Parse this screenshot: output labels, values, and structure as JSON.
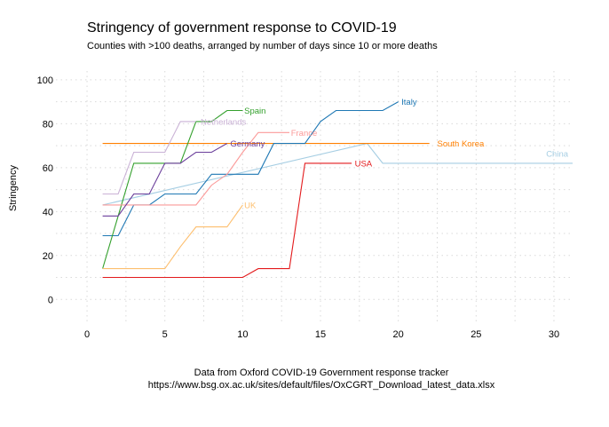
{
  "chart_data": {
    "type": "line",
    "title": "Stringency of government response to COVID-19",
    "subtitle": "Counties with >100 deaths, arranged by number of days since 10 or more deaths",
    "xlabel": "",
    "ylabel": "Stringency",
    "caption_lines": [
      "Data from Oxford COVID-19 Government response tracker",
      "https://www.bsg.ox.ac.uk/sites/default/files/OxCGRT_Download_latest_data.xlsx"
    ],
    "xlim": [
      -2,
      31.2
    ],
    "ylim": [
      -10,
      104
    ],
    "x_ticks": [
      0,
      5,
      10,
      15,
      20,
      25,
      30
    ],
    "y_ticks": [
      0,
      20,
      40,
      60,
      80,
      100
    ],
    "grid": true,
    "legend": "none (direct labels at line ends)",
    "series": [
      {
        "name": "China",
        "color": "#a6cee3",
        "label_at": [
          29.5,
          66.5
        ],
        "points": [
          [
            1,
            43
          ],
          [
            18,
            71
          ],
          [
            19,
            62
          ],
          [
            31.2,
            62
          ]
        ]
      },
      {
        "name": "South Korea",
        "color": "#ff7f00",
        "label_at": [
          22.5,
          71
        ],
        "points": [
          [
            1,
            71
          ],
          [
            22,
            71
          ]
        ]
      },
      {
        "name": "Italy",
        "color": "#1f78b4",
        "label_at": [
          20.2,
          90
        ],
        "points": [
          [
            1,
            29
          ],
          [
            2,
            29
          ],
          [
            3,
            43
          ],
          [
            4,
            43
          ],
          [
            5,
            48
          ],
          [
            6,
            48
          ],
          [
            7,
            48
          ],
          [
            8,
            57
          ],
          [
            9,
            57
          ],
          [
            10,
            57
          ],
          [
            11,
            57
          ],
          [
            12,
            71
          ],
          [
            13,
            71
          ],
          [
            14,
            71
          ],
          [
            15,
            81
          ],
          [
            16,
            86
          ],
          [
            17,
            86
          ],
          [
            18,
            86
          ],
          [
            19,
            86
          ],
          [
            20,
            90
          ]
        ]
      },
      {
        "name": "Spain",
        "color": "#33a02c",
        "label_at": [
          10.1,
          86
        ],
        "points": [
          [
            1,
            14
          ],
          [
            2,
            38
          ],
          [
            3,
            62
          ],
          [
            4,
            62
          ],
          [
            5,
            62
          ],
          [
            6,
            62
          ],
          [
            7,
            81
          ],
          [
            8,
            81
          ],
          [
            9,
            86
          ],
          [
            10,
            86
          ]
        ]
      },
      {
        "name": "Netherlands",
        "color": "#cab2d6",
        "label_at": [
          7.3,
          81
        ],
        "points": [
          [
            1,
            48
          ],
          [
            2,
            48
          ],
          [
            3,
            67
          ],
          [
            4,
            67
          ],
          [
            5,
            67
          ],
          [
            6,
            81
          ],
          [
            7,
            81
          ]
        ]
      },
      {
        "name": "France",
        "color": "#fb9a99",
        "label_at": [
          13.1,
          76
        ],
        "points": [
          [
            1,
            43
          ],
          [
            2,
            43
          ],
          [
            3,
            43
          ],
          [
            4,
            43
          ],
          [
            5,
            43
          ],
          [
            6,
            43
          ],
          [
            7,
            43
          ],
          [
            8,
            52
          ],
          [
            9,
            57
          ],
          [
            10,
            67
          ],
          [
            11,
            76
          ],
          [
            12,
            76
          ],
          [
            13,
            76
          ]
        ]
      },
      {
        "name": "Germany",
        "color": "#6a3d9a",
        "label_at": [
          9.2,
          71
        ],
        "points": [
          [
            1,
            38
          ],
          [
            2,
            38
          ],
          [
            3,
            48
          ],
          [
            4,
            48
          ],
          [
            5,
            62
          ],
          [
            6,
            62
          ],
          [
            7,
            67
          ],
          [
            8,
            67
          ],
          [
            9,
            71
          ]
        ]
      },
      {
        "name": "USA",
        "color": "#e31a1c",
        "label_at": [
          17.2,
          62
        ],
        "points": [
          [
            1,
            10
          ],
          [
            2,
            10
          ],
          [
            3,
            10
          ],
          [
            4,
            10
          ],
          [
            5,
            10
          ],
          [
            6,
            10
          ],
          [
            7,
            10
          ],
          [
            8,
            10
          ],
          [
            9,
            10
          ],
          [
            10,
            10
          ],
          [
            11,
            14
          ],
          [
            12,
            14
          ],
          [
            13,
            14
          ],
          [
            14,
            62
          ],
          [
            15,
            62
          ],
          [
            16,
            62
          ],
          [
            17,
            62
          ]
        ]
      },
      {
        "name": "UK",
        "color": "#fdbf6f",
        "label_at": [
          10.1,
          43
        ],
        "points": [
          [
            1,
            14
          ],
          [
            2,
            14
          ],
          [
            3,
            14
          ],
          [
            4,
            14
          ],
          [
            5,
            14
          ],
          [
            6,
            24
          ],
          [
            7,
            33
          ],
          [
            8,
            33
          ],
          [
            9,
            33
          ],
          [
            10,
            43
          ]
        ]
      }
    ]
  }
}
